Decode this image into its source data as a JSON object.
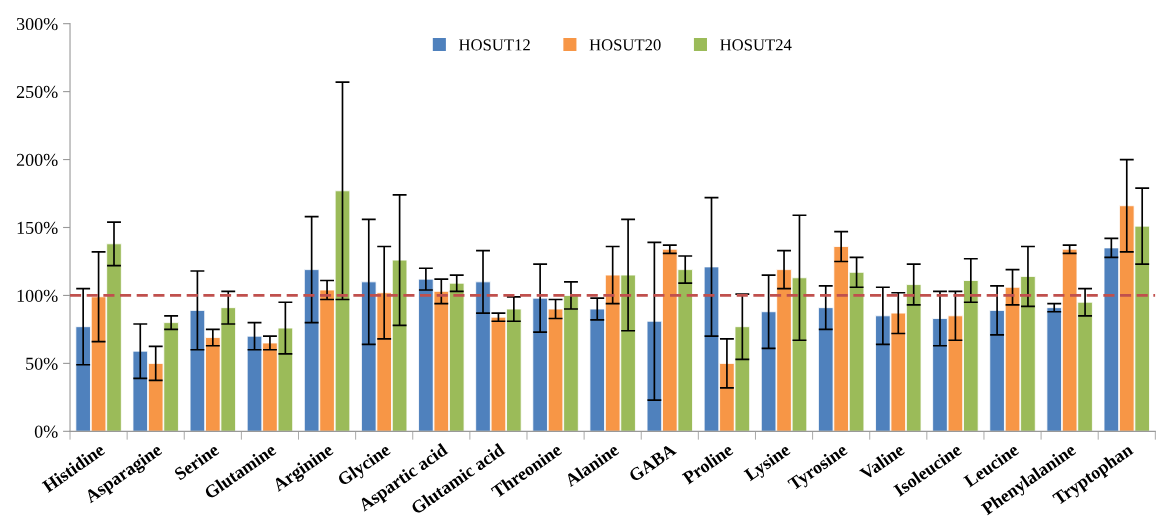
{
  "chart_data": {
    "type": "bar",
    "categories": [
      "Histidine",
      "Asparagine",
      "Serine",
      "Glutamine",
      "Arginine",
      "Glycine",
      "Aspartic acid",
      "Glutamic acid",
      "Threonine",
      "Alanine",
      "GABA",
      "Proline",
      "Lysine",
      "Tyrosine",
      "Valine",
      "Isoleucine",
      "Leucine",
      "Phenylalanine",
      "Tryptophan"
    ],
    "series": [
      {
        "name": "HOSUT12",
        "color": "#4f81bd",
        "values": [
          77,
          59,
          89,
          70,
          119,
          110,
          112,
          110,
          98,
          90,
          81,
          121,
          88,
          91,
          85,
          83,
          89,
          91,
          135
        ],
        "errors": [
          28,
          20,
          29,
          10,
          39,
          46,
          8,
          23,
          25,
          8,
          58,
          51,
          27,
          16,
          21,
          20,
          18,
          3,
          7
        ]
      },
      {
        "name": "HOSUT20",
        "color": "#f79646",
        "values": [
          99,
          50,
          69,
          65,
          104,
          102,
          103,
          84,
          90,
          115,
          134,
          50,
          119,
          136,
          87,
          85,
          106,
          134,
          166
        ],
        "errors": [
          33,
          12.5,
          6,
          5,
          7,
          34,
          9,
          3,
          7,
          21,
          3,
          18,
          14,
          11,
          15,
          18,
          13,
          3,
          34
        ]
      },
      {
        "name": "HOSUT24",
        "color": "#9bbb59",
        "values": [
          138,
          80,
          91,
          76,
          177,
          126,
          109,
          90,
          100,
          115,
          119,
          77,
          113,
          117,
          108,
          111,
          114,
          95,
          151
        ],
        "errors": [
          16,
          5,
          12,
          19,
          80,
          48,
          6,
          9,
          10,
          41,
          10,
          24,
          46,
          11,
          15,
          16,
          22,
          10,
          28
        ]
      }
    ],
    "ylim": [
      0,
      300
    ],
    "yticks": [
      {
        "value": 0,
        "label": "0%"
      },
      {
        "value": 50,
        "label": "50%"
      },
      {
        "value": 100,
        "label": "100%"
      },
      {
        "value": 150,
        "label": "150%"
      },
      {
        "value": 200,
        "label": "200%"
      },
      {
        "value": 250,
        "label": "250%"
      },
      {
        "value": 300,
        "label": "300%"
      }
    ],
    "ref_lines": [
      {
        "axis": "y",
        "value": 100,
        "color": "#c0504d",
        "line_style": "dashed"
      }
    ],
    "legend": "top",
    "grid": false
  }
}
